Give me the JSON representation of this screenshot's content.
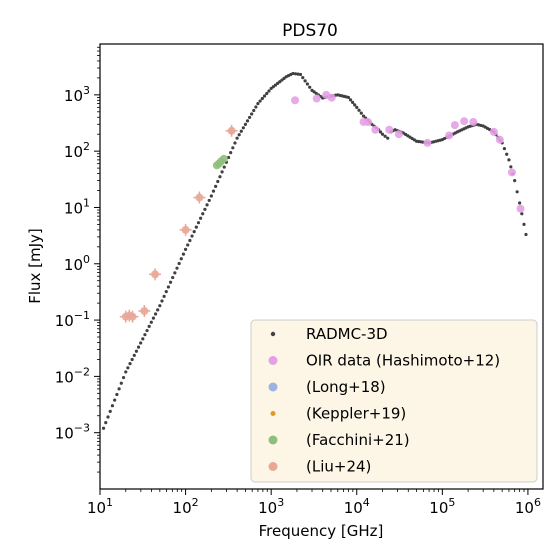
{
  "chart_data": {
    "type": "scatter",
    "title": "PDS70",
    "xlabel": "Frequency [GHz]",
    "ylabel": "Flux [mJy]",
    "xscale": "log",
    "yscale": "log",
    "xlim": [
      10,
      1500000
    ],
    "ylim": [
      0.0001,
      8000
    ],
    "grid": false,
    "legend_position": "lower-right",
    "x_ticks": [
      {
        "value": 10,
        "base": "10",
        "exp": "1"
      },
      {
        "value": 100,
        "base": "10",
        "exp": "2"
      },
      {
        "value": 1000,
        "base": "10",
        "exp": "3"
      },
      {
        "value": 10000,
        "base": "10",
        "exp": "4"
      },
      {
        "value": 100000,
        "base": "10",
        "exp": "5"
      },
      {
        "value": 1000000,
        "base": "10",
        "exp": "6"
      }
    ],
    "y_ticks": [
      {
        "value": 0.001,
        "base": "10",
        "exp": "−3"
      },
      {
        "value": 0.01,
        "base": "10",
        "exp": "−2"
      },
      {
        "value": 0.1,
        "base": "10",
        "exp": "−1"
      },
      {
        "value": 1,
        "base": "10",
        "exp": "0"
      },
      {
        "value": 10,
        "base": "10",
        "exp": "1"
      },
      {
        "value": 100,
        "base": "10",
        "exp": "2"
      },
      {
        "value": 1000,
        "base": "10",
        "exp": "3"
      }
    ],
    "series": [
      {
        "name": "RADMC-3D",
        "kind": "model",
        "color": "#404040",
        "curve": [
          [
            11,
            0.0012
          ],
          [
            20,
            0.012
          ],
          [
            50,
            0.18
          ],
          [
            100,
            1.8
          ],
          [
            200,
            16
          ],
          [
            400,
            170
          ],
          [
            700,
            700
          ],
          [
            1000,
            1300
          ],
          [
            1500,
            2100
          ],
          [
            1800,
            2400
          ],
          [
            2200,
            2300
          ],
          [
            3000,
            1200
          ],
          [
            4000,
            880
          ],
          [
            5000,
            950
          ],
          [
            6000,
            1000
          ],
          [
            8000,
            900
          ],
          [
            10000,
            600
          ],
          [
            12000,
            420
          ],
          [
            15000,
            300
          ],
          [
            18000,
            240
          ],
          [
            20000,
            200
          ],
          [
            23000,
            170
          ],
          [
            25000,
            220
          ],
          [
            28000,
            240
          ],
          [
            35000,
            210
          ],
          [
            50000,
            150
          ],
          [
            70000,
            140
          ],
          [
            100000,
            160
          ],
          [
            150000,
            220
          ],
          [
            200000,
            270
          ],
          [
            250000,
            300
          ],
          [
            300000,
            280
          ],
          [
            400000,
            220
          ],
          [
            500000,
            140
          ],
          [
            600000,
            70
          ],
          [
            700000,
            30
          ],
          [
            800000,
            12
          ],
          [
            900000,
            5
          ],
          [
            1000000,
            2.2
          ]
        ]
      },
      {
        "name": "OIR data (Hashimoto+12)",
        "color": "#e5a0e5",
        "points": [
          [
            1900,
            800
          ],
          [
            3400,
            860
          ],
          [
            4400,
            1000
          ],
          [
            5100,
            890
          ],
          [
            12000,
            330
          ],
          [
            13500,
            330
          ],
          [
            16500,
            240
          ],
          [
            24000,
            240
          ],
          [
            31000,
            200
          ],
          [
            67000,
            140
          ],
          [
            120000,
            190
          ],
          [
            140000,
            290
          ],
          [
            180000,
            340
          ],
          [
            230000,
            330
          ],
          [
            400000,
            220
          ],
          [
            470000,
            160
          ],
          [
            650000,
            42
          ],
          [
            820000,
            9.5
          ]
        ]
      },
      {
        "name": "(Long+18)",
        "color": "#9db3e0",
        "points": []
      },
      {
        "name": "(Keppler+19)",
        "color": "#e5982a",
        "points": [
          [
            345,
            230
          ]
        ]
      },
      {
        "name": "(Facchini+21)",
        "color": "#8fbf7a",
        "points": [
          [
            232,
            56
          ],
          [
            245,
            60
          ],
          [
            260,
            66
          ],
          [
            280,
            73
          ]
        ]
      },
      {
        "name": "(Liu+24)",
        "color": "#e8a898",
        "points": [
          [
            20,
            0.115
          ],
          [
            22,
            0.12
          ],
          [
            24,
            0.115
          ],
          [
            33,
            0.145
          ],
          [
            44,
            0.65
          ],
          [
            100,
            4
          ],
          [
            145,
            15
          ],
          [
            345,
            230
          ]
        ]
      }
    ]
  }
}
